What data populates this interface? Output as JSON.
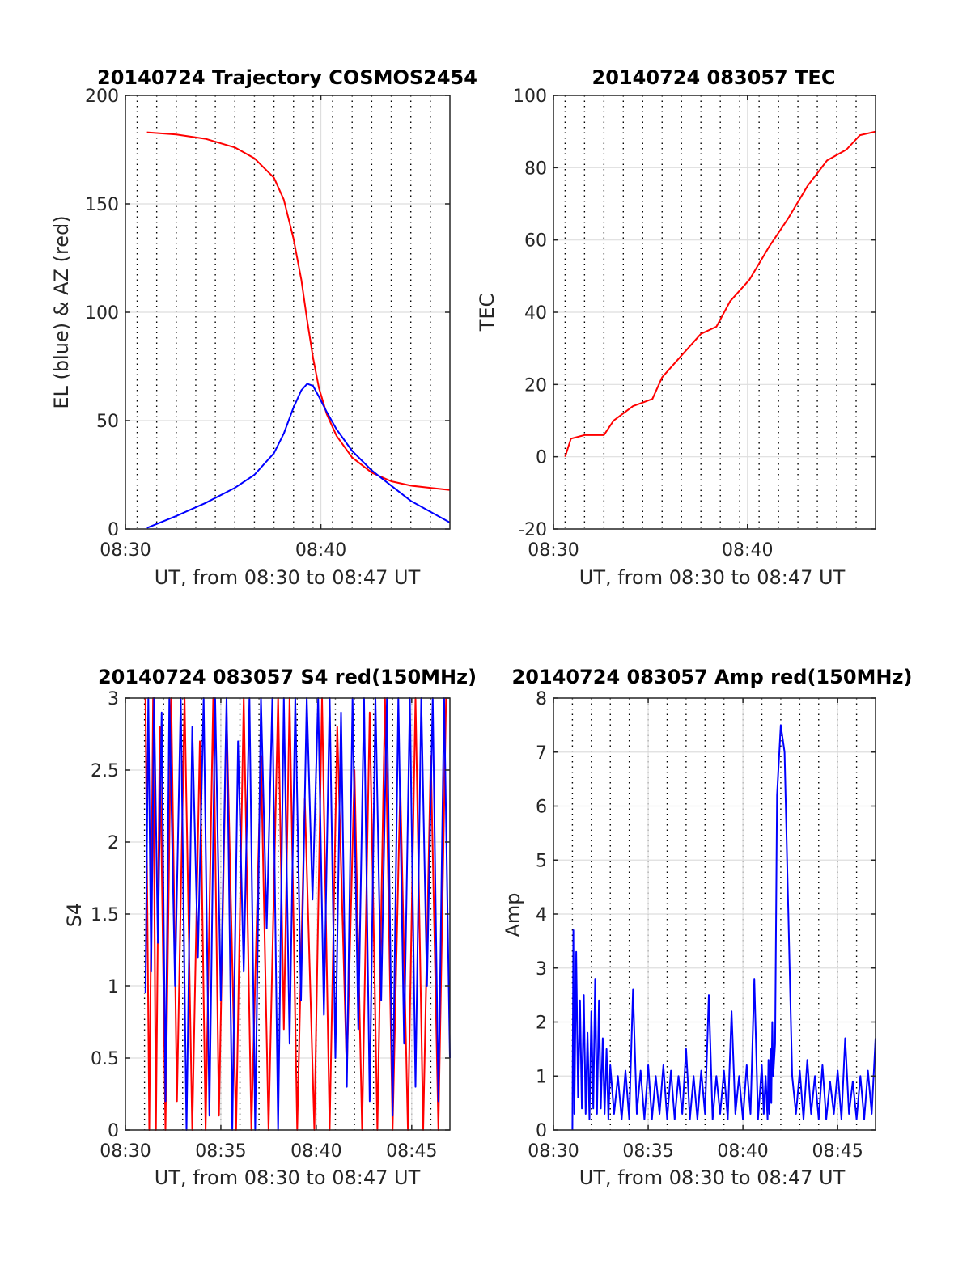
{
  "figure": {
    "background": "#ffffff"
  },
  "chart_data": [
    {
      "id": "trajectory",
      "type": "line",
      "title": "20140724 Trajectory COSMOS2454",
      "xlabel": "UT, from 08:30 to 08:47 UT",
      "ylabel": "EL (blue) & AZ (red)",
      "x_unit": "minutes after 08:30 UT",
      "xlim": [
        0.4,
        17.0
      ],
      "ylim": [
        0,
        200
      ],
      "xticks": [
        {
          "value": 0.4,
          "label": "08:30"
        },
        {
          "value": 10.4,
          "label": "08:40"
        }
      ],
      "yticks": [
        0,
        50,
        100,
        150,
        200
      ],
      "dotted_gridlines_every_min": 1,
      "grid": true,
      "series": [
        {
          "color": "#ff0000",
          "x": [
            1.5,
            3,
            4.5,
            6,
            7,
            8,
            8.5,
            9,
            9.4,
            9.7,
            10,
            10.3,
            10.7,
            11.2,
            12,
            13,
            14,
            15,
            16,
            17
          ],
          "y": [
            183,
            182,
            180,
            176,
            171,
            162,
            152,
            134,
            115,
            96,
            79,
            65,
            53,
            43,
            33,
            26,
            22,
            20,
            19,
            18
          ]
        },
        {
          "color": "#0000ff",
          "x": [
            1.5,
            3,
            4.5,
            6,
            7,
            8,
            8.5,
            9,
            9.4,
            9.7,
            10,
            10.3,
            10.7,
            11.2,
            12,
            13,
            14,
            15,
            16,
            17
          ],
          "y": [
            0.5,
            6,
            12,
            19,
            25,
            35,
            44,
            56,
            64,
            67,
            66,
            61,
            54,
            46,
            36,
            27,
            20,
            13,
            8,
            3
          ]
        }
      ]
    },
    {
      "id": "tec",
      "type": "line",
      "title": "20140724 083057 TEC",
      "xlabel": "UT, from 08:30 to 08:47 UT",
      "ylabel": "TEC",
      "x_unit": "minutes after 08:30 UT",
      "xlim": [
        0.4,
        17.0
      ],
      "ylim": [
        -20,
        100
      ],
      "xticks": [
        {
          "value": 0.4,
          "label": "08:30"
        },
        {
          "value": 10.4,
          "label": "08:40"
        }
      ],
      "yticks": [
        -20,
        0,
        20,
        40,
        60,
        80,
        100
      ],
      "dotted_gridlines_every_min": 1,
      "grid": true,
      "series": [
        {
          "color": "#ff0000",
          "x": [
            1.0,
            1.3,
            2.0,
            3.0,
            3.5,
            4.5,
            5.0,
            5.5,
            6.0,
            7.0,
            8.0,
            8.8,
            9.5,
            10.5,
            11.5,
            12.5,
            13.5,
            14.5,
            15.5,
            16.2,
            17.0
          ],
          "y": [
            0,
            5,
            6,
            6,
            10,
            14,
            15,
            16,
            22,
            28,
            34,
            36,
            43,
            49,
            58,
            66,
            75,
            82,
            85,
            89,
            90
          ]
        }
      ]
    },
    {
      "id": "s4",
      "type": "line",
      "title": "20140724 083057 S4 red(150MHz)",
      "xlabel": "UT, from 08:30 to 08:47 UT",
      "ylabel": "S4",
      "x_unit": "minutes after 08:30 UT",
      "xlim": [
        0.0,
        17.0
      ],
      "ylim": [
        0,
        3
      ],
      "xticks": [
        {
          "value": 0,
          "label": "08:30"
        },
        {
          "value": 5,
          "label": "08:35"
        },
        {
          "value": 10,
          "label": "08:40"
        },
        {
          "value": 15,
          "label": "08:45"
        }
      ],
      "yticks": [
        0,
        0.5,
        1,
        1.5,
        2,
        2.5,
        3
      ],
      "dotted_gridlines_every_min": 1,
      "grid": true,
      "series": [
        {
          "color": "#ff0000",
          "x": [
            1.05,
            1.25,
            1.45,
            1.6,
            1.8,
            2.1,
            2.4,
            2.7,
            3.1,
            3.5,
            3.9,
            4.2,
            4.6,
            4.9,
            5.3,
            5.8,
            6.2,
            6.6,
            7.1,
            7.5,
            8.0,
            8.3,
            8.6,
            9.0,
            9.4,
            9.9,
            10.3,
            10.7,
            11.1,
            11.6,
            12.0,
            12.4,
            12.8,
            13.2,
            13.6,
            14.0,
            14.4,
            14.8,
            15.2,
            15.6,
            16.0,
            16.4,
            16.8
          ],
          "y": [
            3,
            0,
            3,
            0,
            2.8,
            0,
            3,
            0.2,
            3,
            0,
            2.7,
            0,
            3,
            0.1,
            2.9,
            0,
            3,
            0,
            2.6,
            0,
            3,
            0.7,
            3,
            0,
            2.3,
            0,
            3,
            0,
            2.8,
            0.4,
            2.5,
            0,
            2.9,
            0,
            3,
            0,
            2.4,
            0,
            3,
            0,
            2.6,
            0,
            3
          ]
        },
        {
          "color": "#0000ff",
          "x": [
            1.05,
            1.2,
            1.35,
            1.5,
            1.7,
            1.9,
            2.1,
            2.3,
            2.6,
            2.9,
            3.2,
            3.5,
            3.8,
            4.1,
            4.4,
            4.7,
            5.0,
            5.3,
            5.6,
            5.9,
            6.2,
            6.5,
            6.8,
            7.1,
            7.4,
            7.7,
            8.0,
            8.3,
            8.6,
            8.9,
            9.2,
            9.5,
            9.8,
            10.1,
            10.4,
            10.7,
            11.0,
            11.3,
            11.6,
            11.9,
            12.2,
            12.5,
            12.8,
            13.1,
            13.4,
            13.7,
            14.0,
            14.3,
            14.6,
            14.9,
            15.2,
            15.5,
            15.8,
            16.1,
            16.4,
            16.7,
            17.0
          ],
          "y": [
            0.95,
            3,
            1.1,
            3,
            1.3,
            2.9,
            0.2,
            3,
            1.0,
            3,
            0,
            2.8,
            1.2,
            3,
            0.1,
            3,
            0.9,
            3,
            0,
            2.7,
            1.1,
            3,
            0,
            3,
            1.4,
            3,
            0,
            3,
            0.6,
            3,
            0.9,
            3,
            1.6,
            3,
            0.8,
            3,
            0.5,
            2.9,
            0.3,
            3,
            0.7,
            3,
            0.2,
            3,
            0.9,
            3,
            0.1,
            3,
            0.6,
            3,
            0.3,
            3,
            1.0,
            3,
            0.2,
            3,
            0.5
          ]
        }
      ]
    },
    {
      "id": "amp",
      "type": "line",
      "title": "20140724 083057 Amp red(150MHz)",
      "xlabel": "UT, from 08:30 to 08:47 UT",
      "ylabel": "Amp",
      "x_unit": "minutes after 08:30 UT",
      "xlim": [
        0.0,
        17.0
      ],
      "ylim": [
        0,
        8
      ],
      "xticks": [
        {
          "value": 0,
          "label": "08:30"
        },
        {
          "value": 5,
          "label": "08:35"
        },
        {
          "value": 10,
          "label": "08:40"
        },
        {
          "value": 15,
          "label": "08:45"
        }
      ],
      "yticks": [
        0,
        1,
        2,
        3,
        4,
        5,
        6,
        7,
        8
      ],
      "dotted_gridlines_every_min": 1,
      "grid": true,
      "series": [
        {
          "color": "#0000ff",
          "x": [
            1.0,
            1.05,
            1.1,
            1.2,
            1.3,
            1.4,
            1.5,
            1.6,
            1.7,
            1.8,
            1.9,
            2.0,
            2.1,
            2.2,
            2.3,
            2.4,
            2.5,
            2.6,
            2.7,
            2.8,
            2.9,
            3.0,
            3.2,
            3.4,
            3.6,
            3.8,
            4.0,
            4.2,
            4.4,
            4.6,
            4.8,
            5.0,
            5.2,
            5.4,
            5.6,
            5.8,
            6.0,
            6.2,
            6.4,
            6.6,
            6.8,
            7.0,
            7.2,
            7.4,
            7.6,
            7.8,
            8.0,
            8.2,
            8.4,
            8.6,
            8.8,
            9.0,
            9.2,
            9.4,
            9.6,
            9.8,
            10.0,
            10.2,
            10.4,
            10.6,
            10.8,
            11.0,
            11.1,
            11.2,
            11.3,
            11.35,
            11.4,
            11.45,
            11.5,
            11.55,
            11.6,
            11.7,
            11.8,
            12.0,
            12.2,
            12.4,
            12.6,
            12.8,
            13.0,
            13.2,
            13.4,
            13.6,
            13.8,
            14.0,
            14.2,
            14.4,
            14.6,
            14.8,
            15.0,
            15.2,
            15.4,
            15.6,
            15.8,
            16.0,
            16.2,
            16.4,
            16.6,
            16.8,
            17.0
          ],
          "y": [
            0.0,
            3.7,
            0.3,
            3.3,
            0.6,
            2.4,
            0.4,
            2.5,
            0.3,
            1.8,
            0.2,
            2.2,
            0.4,
            2.8,
            0.3,
            2.4,
            0.4,
            1.7,
            0.3,
            1.5,
            0.2,
            1.2,
            0.3,
            1.0,
            0.2,
            1.1,
            0.2,
            2.6,
            0.3,
            1.1,
            0.2,
            1.2,
            0.2,
            1.0,
            0.3,
            1.2,
            0.2,
            1.1,
            0.2,
            1.0,
            0.3,
            1.5,
            0.2,
            1.0,
            0.2,
            1.1,
            0.3,
            2.5,
            0.2,
            1.0,
            0.3,
            1.1,
            0.2,
            2.2,
            0.3,
            1.0,
            0.2,
            1.2,
            0.3,
            2.8,
            0.2,
            1.2,
            0.3,
            1.0,
            0.2,
            1.3,
            0.3,
            1.5,
            0.5,
            2.0,
            1.0,
            1.6,
            6.2,
            7.5,
            7.0,
            4.0,
            1.0,
            0.3,
            1.1,
            0.2,
            1.3,
            0.3,
            1.0,
            0.2,
            1.2,
            0.2,
            0.9,
            0.3,
            1.1,
            0.2,
            1.7,
            0.3,
            0.9,
            0.2,
            1.0,
            0.2,
            1.1,
            0.3,
            1.7
          ]
        }
      ]
    }
  ]
}
